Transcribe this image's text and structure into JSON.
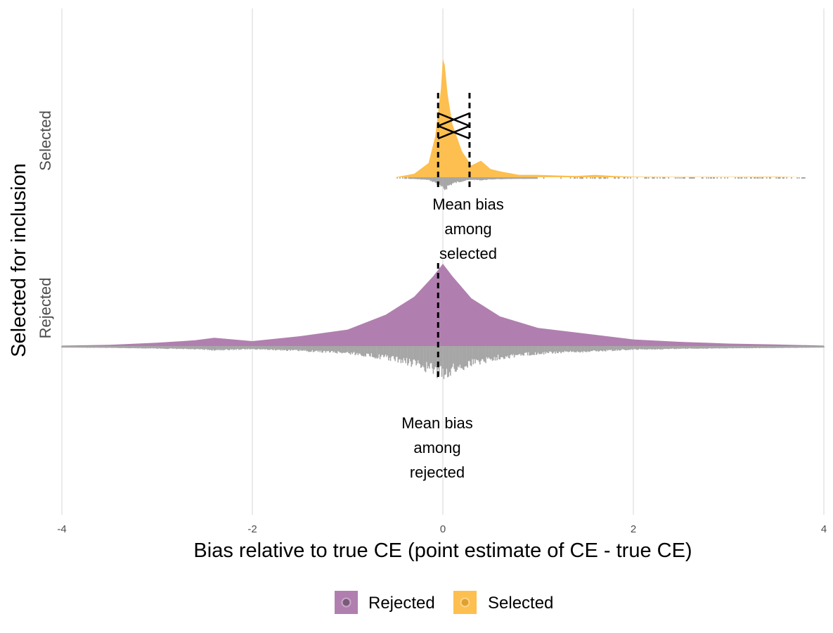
{
  "chart_data": {
    "type": "density-ridge",
    "xlabel": "Bias relative to true CE (point estimate of CE - true CE)",
    "ylabel": "Selected for inclusion",
    "xlim": [
      -4,
      4
    ],
    "x_ticks": [
      "-4",
      "-2",
      "0",
      "2",
      "4"
    ],
    "x_tick_values": [
      -4,
      -2,
      0,
      2,
      4
    ],
    "categories": [
      "Selected",
      "Rejected"
    ],
    "grid": true,
    "colors": {
      "Rejected": "#b07faf",
      "Selected": "#fdbf4f",
      "rug": "#a6a6a6",
      "grid": "#ebebeb"
    },
    "series": [
      {
        "name": "Selected",
        "x": [
          -0.5,
          -0.3,
          -0.15,
          -0.08,
          -0.02,
          0.0,
          0.02,
          0.05,
          0.1,
          0.2,
          0.3,
          0.4,
          0.5,
          0.6,
          0.8,
          1.0,
          1.2,
          1.4,
          1.6,
          1.8,
          2.0,
          2.5,
          3.0,
          3.5,
          3.8
        ],
        "density": [
          0.0,
          0.03,
          0.12,
          0.35,
          0.75,
          1.0,
          0.95,
          0.7,
          0.45,
          0.22,
          0.1,
          0.14,
          0.07,
          0.05,
          0.02,
          0.02,
          0.015,
          0.01,
          0.02,
          0.01,
          0.005,
          0.003,
          0.003,
          0.005,
          0.0
        ],
        "mean_bias": 0.28,
        "median_bias": -0.05,
        "annotation": [
          "Mean bias",
          "among",
          "selected"
        ]
      },
      {
        "name": "Rejected",
        "x": [
          -4.0,
          -3.5,
          -3.0,
          -2.6,
          -2.4,
          -2.2,
          -2.0,
          -1.5,
          -1.0,
          -0.6,
          -0.3,
          -0.1,
          0.0,
          0.1,
          0.3,
          0.6,
          1.0,
          1.5,
          2.0,
          2.5,
          3.0,
          3.5,
          4.0
        ],
        "density": [
          0.005,
          0.015,
          0.04,
          0.07,
          0.1,
          0.08,
          0.06,
          0.12,
          0.2,
          0.38,
          0.6,
          0.85,
          1.0,
          0.85,
          0.58,
          0.36,
          0.22,
          0.15,
          0.08,
          0.05,
          0.03,
          0.02,
          0.005
        ],
        "mean_bias": -0.05,
        "annotation": [
          "Mean bias",
          "among",
          "rejected"
        ]
      }
    ],
    "legend": {
      "position": "bottom",
      "items": [
        "Rejected",
        "Selected"
      ]
    }
  }
}
